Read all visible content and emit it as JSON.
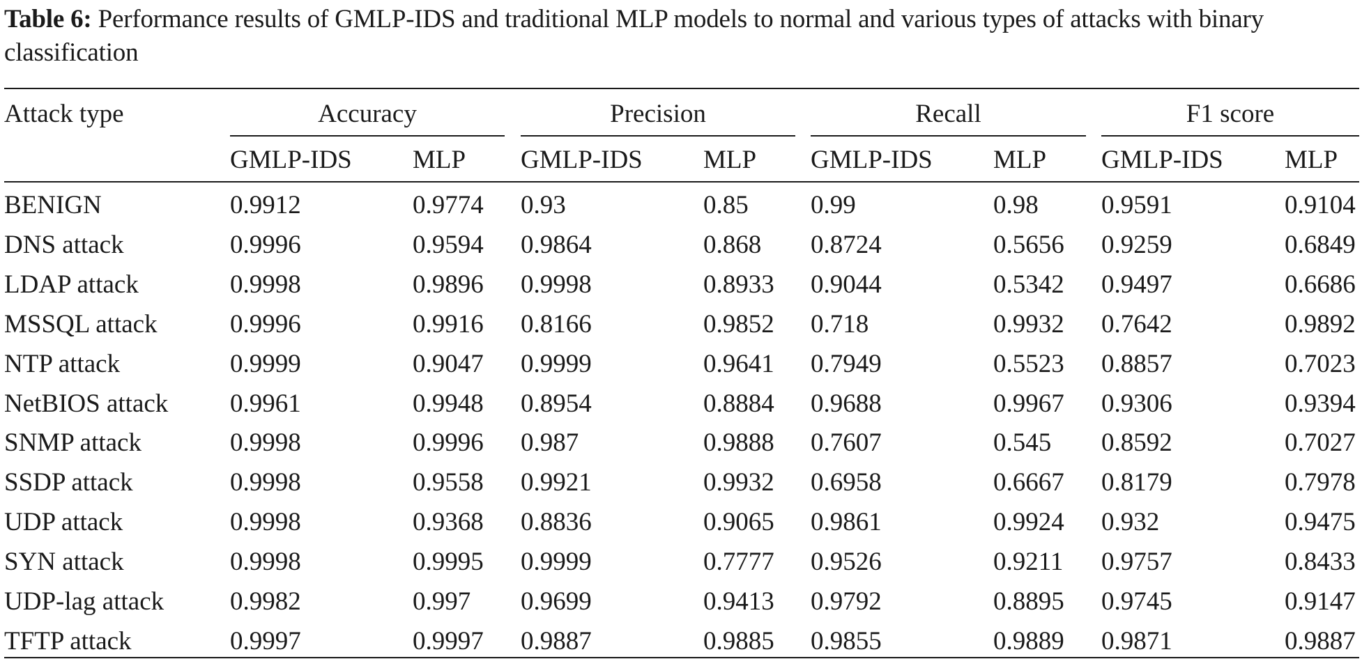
{
  "caption": {
    "label": "Table 6:",
    "text": "Performance results of GMLP-IDS and traditional MLP models to normal and various types of attacks with binary classification"
  },
  "header": {
    "row_label": "Attack type",
    "groups": [
      "Accuracy",
      "Precision",
      "Recall",
      "F1 score"
    ],
    "subcols": [
      "GMLP-IDS",
      "MLP",
      "GMLP-IDS",
      "MLP",
      "GMLP-IDS",
      "MLP",
      "GMLP-IDS",
      "MLP"
    ]
  },
  "rows": [
    {
      "label": "BENIGN",
      "values": [
        "0.9912",
        "0.9774",
        "0.93",
        "0.85",
        "0.99",
        "0.98",
        "0.9591",
        "0.9104"
      ]
    },
    {
      "label": "DNS attack",
      "values": [
        "0.9996",
        "0.9594",
        "0.9864",
        "0.868",
        "0.8724",
        "0.5656",
        "0.9259",
        "0.6849"
      ]
    },
    {
      "label": "LDAP attack",
      "values": [
        "0.9998",
        "0.9896",
        "0.9998",
        "0.8933",
        "0.9044",
        "0.5342",
        "0.9497",
        "0.6686"
      ]
    },
    {
      "label": "MSSQL attack",
      "values": [
        "0.9996",
        "0.9916",
        "0.8166",
        "0.9852",
        "0.718",
        "0.9932",
        "0.7642",
        "0.9892"
      ]
    },
    {
      "label": "NTP attack",
      "values": [
        "0.9999",
        "0.9047",
        "0.9999",
        "0.9641",
        "0.7949",
        "0.5523",
        "0.8857",
        "0.7023"
      ]
    },
    {
      "label": "NetBIOS attack",
      "values": [
        "0.9961",
        "0.9948",
        "0.8954",
        "0.8884",
        "0.9688",
        "0.9967",
        "0.9306",
        "0.9394"
      ]
    },
    {
      "label": "SNMP attack",
      "values": [
        "0.9998",
        "0.9996",
        "0.987",
        "0.9888",
        "0.7607",
        "0.545",
        "0.8592",
        "0.7027"
      ]
    },
    {
      "label": "SSDP attack",
      "values": [
        "0.9998",
        "0.9558",
        "0.9921",
        "0.9932",
        "0.6958",
        "0.6667",
        "0.8179",
        "0.7978"
      ]
    },
    {
      "label": "UDP attack",
      "values": [
        "0.9998",
        "0.9368",
        "0.8836",
        "0.9065",
        "0.9861",
        "0.9924",
        "0.932",
        "0.9475"
      ]
    },
    {
      "label": "SYN attack",
      "values": [
        "0.9998",
        "0.9995",
        "0.9999",
        "0.7777",
        "0.9526",
        "0.9211",
        "0.9757",
        "0.8433"
      ]
    },
    {
      "label": "UDP-lag attack",
      "values": [
        "0.9982",
        "0.997",
        "0.9699",
        "0.9413",
        "0.9792",
        "0.8895",
        "0.9745",
        "0.9147"
      ]
    },
    {
      "label": "TFTP attack",
      "values": [
        "0.9997",
        "0.9997",
        "0.9887",
        "0.9885",
        "0.9855",
        "0.9889",
        "0.9871",
        "0.9887"
      ]
    }
  ]
}
